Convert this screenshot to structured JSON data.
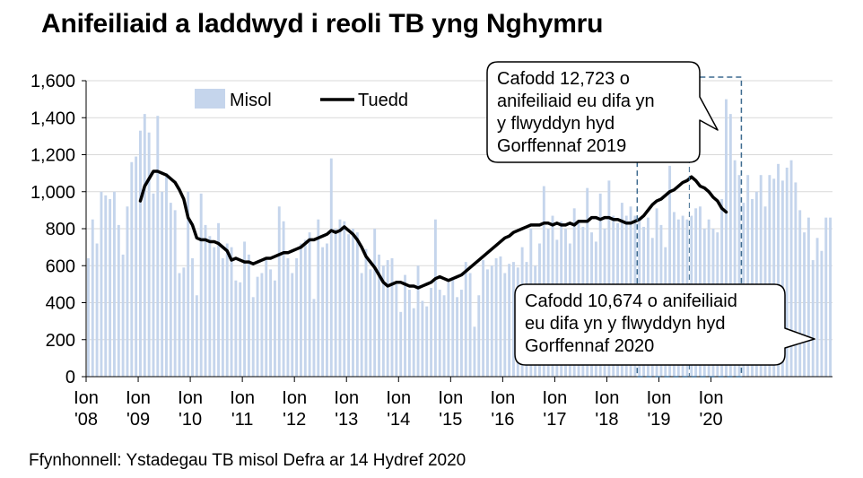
{
  "title": "Anifeiliaid a laddwyd i reoli TB yng Nghymru",
  "source": "Ffynhonnell: Ystadegau TB misol Defra ar 14 Hydref 2020",
  "colors": {
    "bar": "#c5d5ec",
    "trend": "#000000",
    "box": "#3d6a8f",
    "grid": "#d9d9d9"
  },
  "chart_data": {
    "type": "bar",
    "title": "Anifeiliaid a laddwyd i reoli TB yng Nghymru",
    "xlabel": "",
    "ylabel": "",
    "ylim": [
      0,
      1600
    ],
    "yticks": [
      "0",
      "200",
      "400",
      "600",
      "800",
      "1,000",
      "1,200",
      "1,400",
      "1,600"
    ],
    "ytick_values": [
      0,
      200,
      400,
      600,
      800,
      1000,
      1200,
      1400,
      1600
    ],
    "xticks": [
      {
        "top": "Ion",
        "bottom": "'08"
      },
      {
        "top": "Ion",
        "bottom": "'09"
      },
      {
        "top": "Ion",
        "bottom": "'10"
      },
      {
        "top": "Ion",
        "bottom": "'11"
      },
      {
        "top": "Ion",
        "bottom": "'12"
      },
      {
        "top": "Ion",
        "bottom": "'13"
      },
      {
        "top": "Ion",
        "bottom": "'14"
      },
      {
        "top": "Ion",
        "bottom": "'15"
      },
      {
        "top": "Ion",
        "bottom": "'16"
      },
      {
        "top": "Ion",
        "bottom": "'17"
      },
      {
        "top": "Ion",
        "bottom": "'18"
      },
      {
        "top": "Ion",
        "bottom": "'19"
      },
      {
        "top": "Ion",
        "bottom": "'20"
      }
    ],
    "start": "2008-01",
    "legend": {
      "monthly": "Misol",
      "trend": "Tuedd",
      "position": "top-left"
    },
    "series": [
      {
        "name": "Misol",
        "type": "bar",
        "values": [
          640,
          850,
          720,
          1000,
          980,
          960,
          1000,
          820,
          660,
          920,
          1160,
          1190,
          1330,
          1420,
          1320,
          990,
          1410,
          1000,
          1100,
          940,
          900,
          560,
          590,
          1000,
          640,
          440,
          990,
          820,
          760,
          700,
          830,
          640,
          720,
          700,
          520,
          510,
          730,
          660,
          430,
          540,
          560,
          630,
          580,
          520,
          920,
          840,
          640,
          560,
          640,
          720,
          740,
          780,
          420,
          850,
          700,
          720,
          1180,
          800,
          850,
          840,
          770,
          800,
          780,
          560,
          690,
          580,
          800,
          660,
          600,
          630,
          640,
          500,
          350,
          550,
          470,
          370,
          600,
          410,
          380,
          480,
          850,
          470,
          440,
          510,
          540,
          430,
          470,
          620,
          560,
          270,
          440,
          630,
          580,
          600,
          640,
          650,
          560,
          610,
          620,
          590,
          700,
          620,
          800,
          600,
          720,
          1030,
          800,
          870,
          740,
          840,
          800,
          720,
          910,
          830,
          810,
          1020,
          780,
          730,
          990,
          800,
          1060,
          870,
          830,
          940,
          870,
          920,
          870,
          850,
          810,
          860,
          750,
          910,
          820,
          700,
          1140,
          890,
          850,
          870,
          850,
          870,
          910,
          920,
          800,
          850,
          800,
          780,
          960,
          1500,
          1420,
          1170,
          1090,
          940,
          1090,
          960,
          1000,
          1090,
          920,
          1090,
          1070,
          1150,
          1060,
          1130,
          1170,
          1050,
          900,
          780,
          860,
          630,
          750,
          680,
          860,
          860
        ],
        "color": "#c5d5ec"
      },
      {
        "name": "Tuedd",
        "type": "line",
        "start_index": 12,
        "values": [
          950,
          1030,
          1070,
          1110,
          1110,
          1100,
          1090,
          1070,
          1050,
          1010,
          960,
          860,
          820,
          750,
          740,
          740,
          730,
          730,
          720,
          700,
          680,
          630,
          640,
          630,
          620,
          620,
          610,
          620,
          630,
          640,
          640,
          650,
          660,
          670,
          670,
          680,
          690,
          700,
          720,
          740,
          740,
          750,
          760,
          770,
          790,
          780,
          790,
          810,
          790,
          770,
          740,
          700,
          650,
          620,
          590,
          550,
          510,
          490,
          500,
          510,
          510,
          500,
          490,
          490,
          480,
          490,
          500,
          510,
          530,
          540,
          530,
          520,
          530,
          540,
          550,
          570,
          590,
          610,
          630,
          650,
          670,
          690,
          710,
          730,
          750,
          760,
          780,
          790,
          800,
          810,
          820,
          820,
          820,
          830,
          830,
          820,
          830,
          820,
          820,
          830,
          820,
          840,
          840,
          840,
          860,
          860,
          850,
          860,
          860,
          850,
          850,
          840,
          830,
          830,
          840,
          850,
          870,
          900,
          930,
          950,
          960,
          980,
          1000,
          1010,
          1030,
          1050,
          1060,
          1080,
          1060,
          1030,
          1020,
          1000,
          970,
          950,
          910,
          890
        ]
      }
    ]
  },
  "callouts": {
    "c2019": [
      "Cafodd 12,723 o",
      "anifeiliaid eu difa yn",
      "y flwyddyn hyd",
      "Gorffennaf 2019"
    ],
    "c2020": [
      "Cafodd 10,674 o anifeiliaid",
      "eu difa yn y flwyddyn hyd",
      "Gorffennaf 2020"
    ]
  }
}
